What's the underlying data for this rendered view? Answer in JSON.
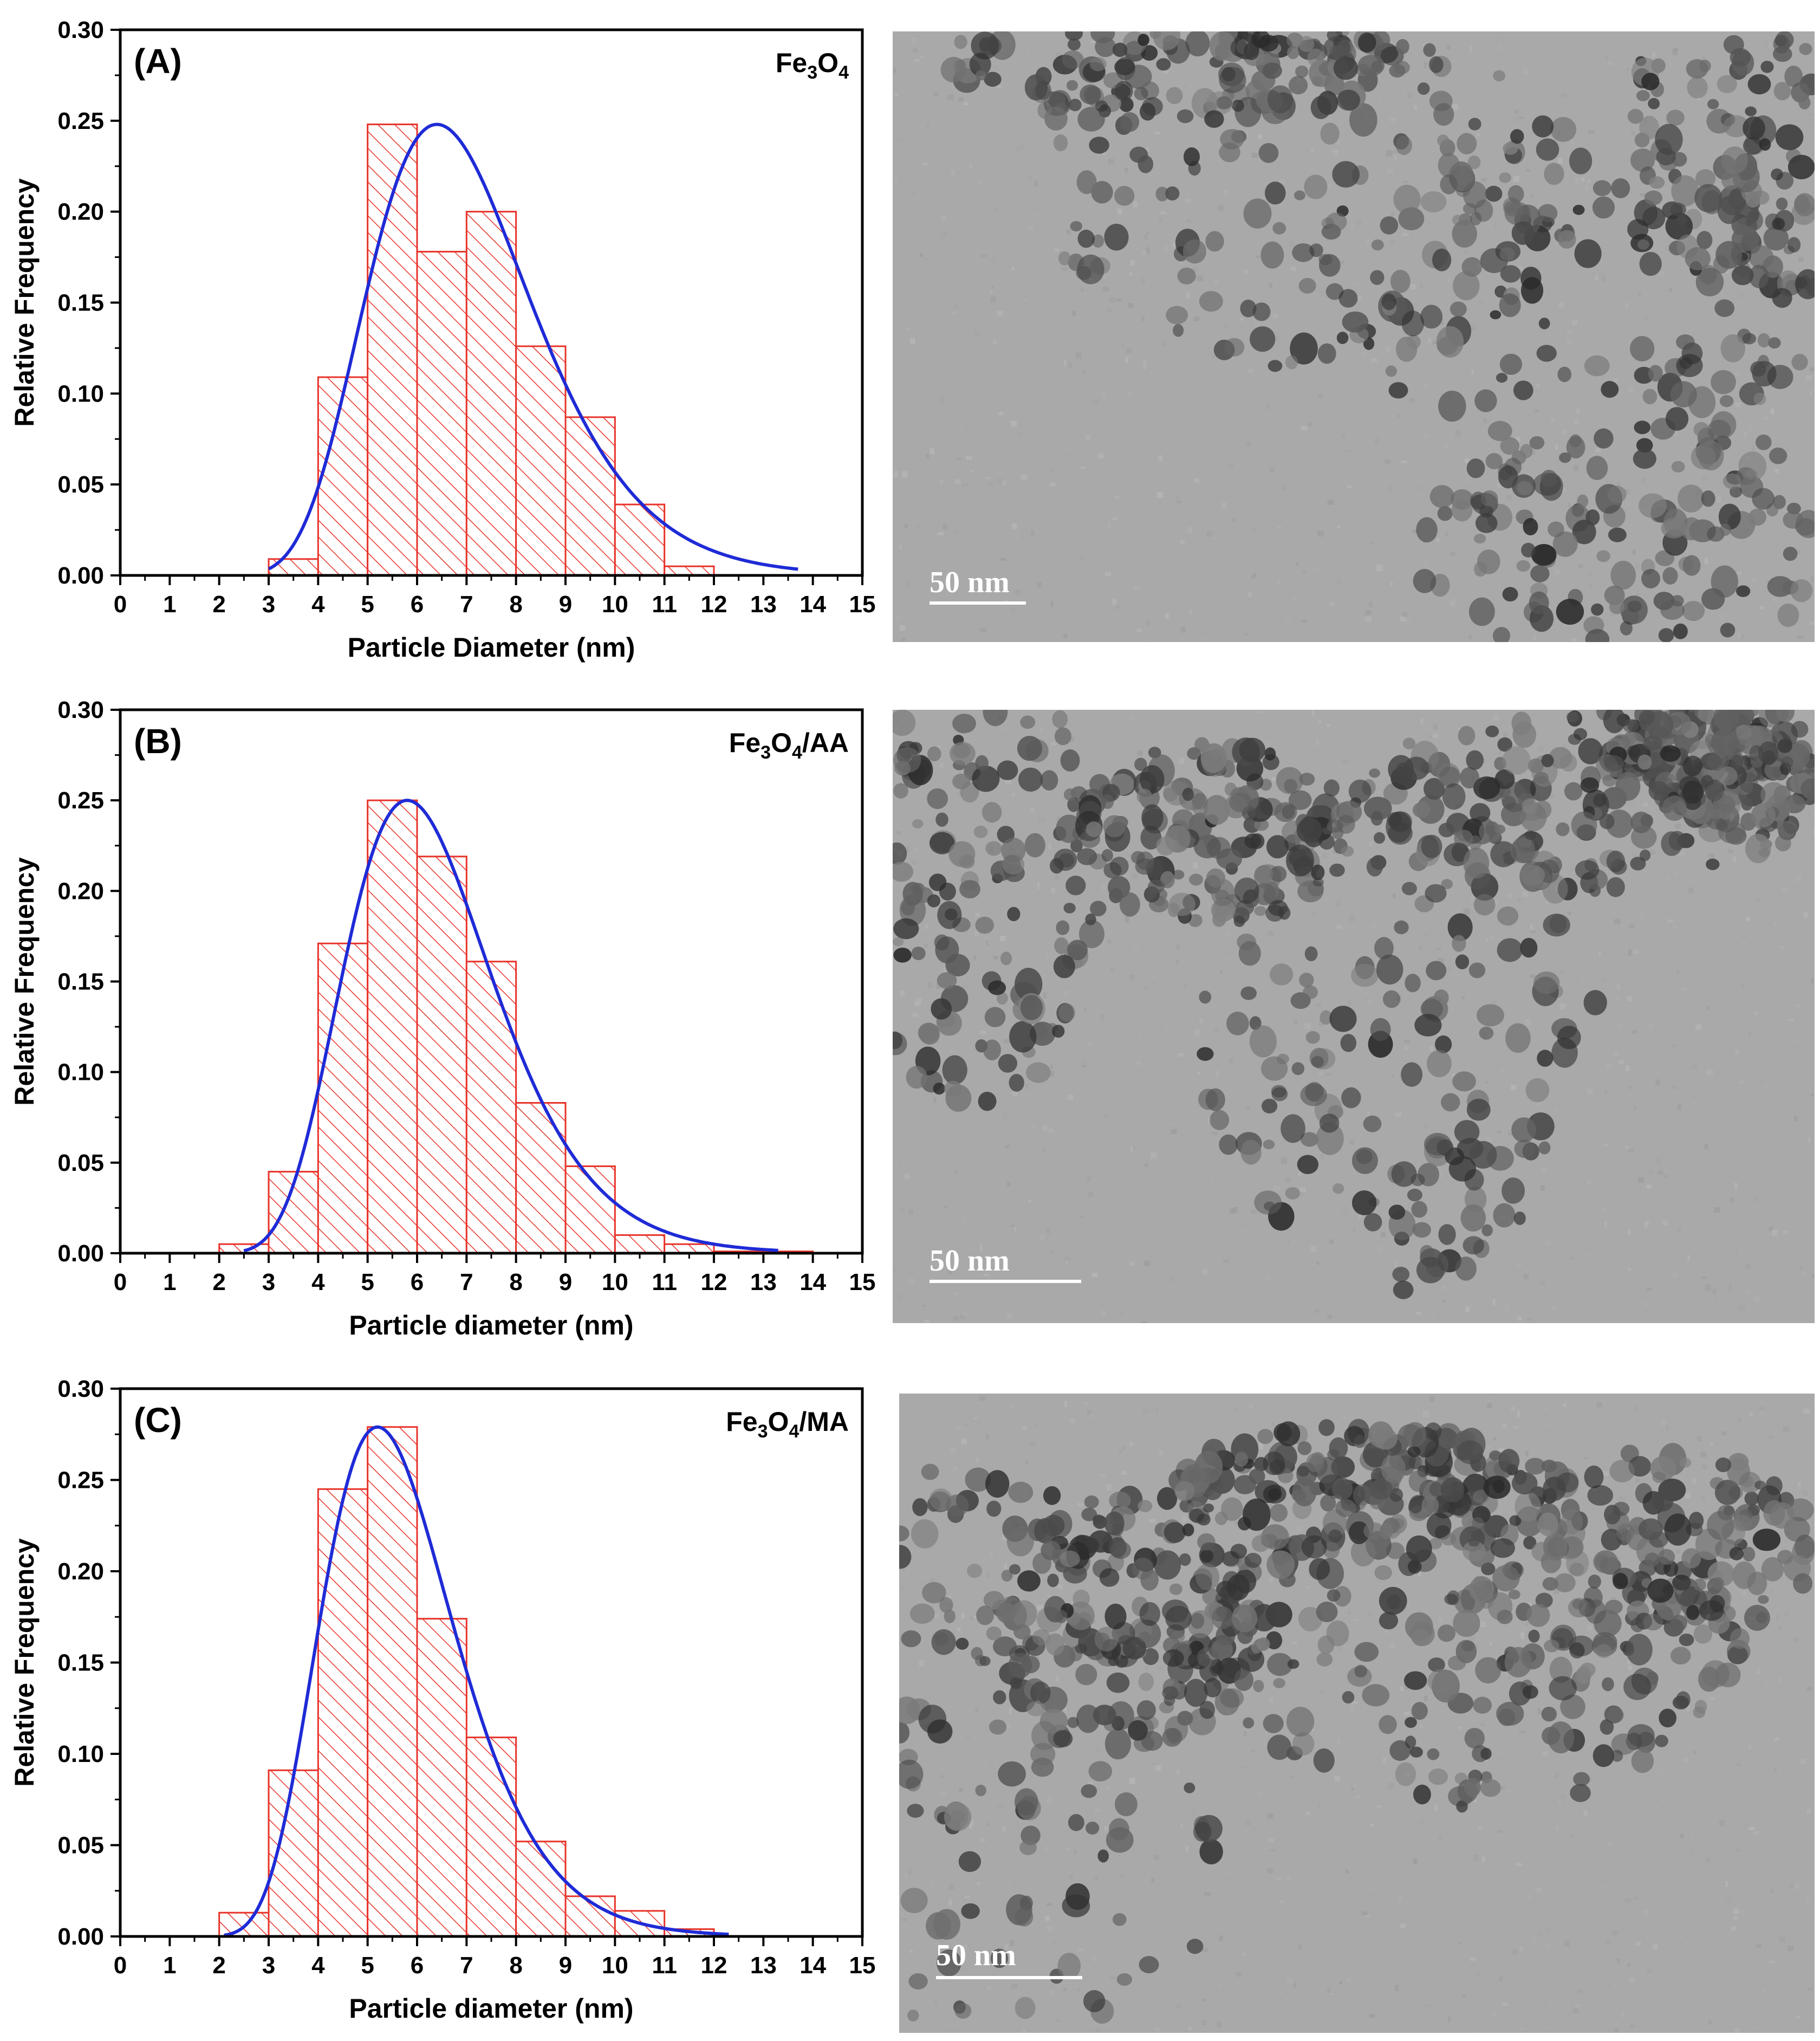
{
  "figure": {
    "colors": {
      "bar_edge": "#e8332a",
      "hatch": "#e8332a",
      "fit_line": "#1f2bd6",
      "axis": "#000000",
      "tem_background": "#a9a9a9",
      "scale_bar": "#ffffff"
    }
  },
  "chart_data": [
    {
      "type": "bar",
      "panel_label": "(A)",
      "sample_label": "Fe3O4",
      "sample_label_parts": [
        "Fe",
        "3",
        "O",
        "4",
        ""
      ],
      "xlabel": "Particle Diameter (nm)",
      "ylabel": "Relative Frequency",
      "xlim": [
        0,
        15
      ],
      "ylim": [
        0,
        0.3
      ],
      "xticks": [
        "0",
        "1",
        "2",
        "3",
        "4",
        "5",
        "6",
        "7",
        "8",
        "9",
        "10",
        "11",
        "12",
        "13",
        "14",
        "15"
      ],
      "yticks": [
        "0.00",
        "0.05",
        "0.10",
        "0.15",
        "0.20",
        "0.25",
        "0.30"
      ],
      "bins": [
        [
          3,
          4
        ],
        [
          4,
          5
        ],
        [
          5,
          6
        ],
        [
          6,
          7
        ],
        [
          7,
          8
        ],
        [
          8,
          9
        ],
        [
          9,
          10
        ],
        [
          10,
          11
        ],
        [
          11,
          12
        ]
      ],
      "values": [
        0.009,
        0.109,
        0.248,
        0.178,
        0.2,
        0.126,
        0.087,
        0.039,
        0.005
      ],
      "fit": {
        "name": "lognormal fit",
        "peak_x": 6.4,
        "peak_y": 0.248,
        "x_start": 3.0,
        "x_end": 13.7
      }
    },
    {
      "type": "bar",
      "panel_label": "(B)",
      "sample_label": "Fe3O4/AA",
      "sample_label_parts": [
        "Fe",
        "3",
        "O",
        "4",
        "/AA"
      ],
      "xlabel": "Particle diameter (nm)",
      "ylabel": "Relative Frequency",
      "xlim": [
        0,
        15
      ],
      "ylim": [
        0,
        0.3
      ],
      "xticks": [
        "0",
        "1",
        "2",
        "3",
        "4",
        "5",
        "6",
        "7",
        "8",
        "9",
        "10",
        "11",
        "12",
        "13",
        "14",
        "15"
      ],
      "yticks": [
        "0.00",
        "0.05",
        "0.10",
        "0.15",
        "0.20",
        "0.25",
        "0.30"
      ],
      "bins": [
        [
          2,
          3
        ],
        [
          3,
          4
        ],
        [
          4,
          5
        ],
        [
          5,
          6
        ],
        [
          6,
          7
        ],
        [
          7,
          8
        ],
        [
          8,
          9
        ],
        [
          9,
          10
        ],
        [
          10,
          11
        ],
        [
          11,
          12
        ],
        [
          12,
          13
        ],
        [
          13,
          14
        ]
      ],
      "values": [
        0.005,
        0.045,
        0.171,
        0.25,
        0.219,
        0.161,
        0.083,
        0.048,
        0.01,
        0.005,
        0.001,
        0.001
      ],
      "fit": {
        "name": "lognormal fit",
        "peak_x": 5.8,
        "peak_y": 0.25,
        "x_start": 2.5,
        "x_end": 13.3
      }
    },
    {
      "type": "bar",
      "panel_label": "(C)",
      "sample_label": "Fe3O4/MA",
      "sample_label_parts": [
        "Fe",
        "3",
        "O",
        "4",
        "/MA"
      ],
      "xlabel": "Particle diameter (nm)",
      "ylabel": "Relative Frequency",
      "xlim": [
        0,
        15
      ],
      "ylim": [
        0,
        0.3
      ],
      "xticks": [
        "0",
        "1",
        "2",
        "3",
        "4",
        "5",
        "6",
        "7",
        "8",
        "9",
        "10",
        "11",
        "12",
        "13",
        "14",
        "15"
      ],
      "yticks": [
        "0.00",
        "0.05",
        "0.10",
        "0.15",
        "0.20",
        "0.25",
        "0.30"
      ],
      "bins": [
        [
          2,
          3
        ],
        [
          3,
          4
        ],
        [
          4,
          5
        ],
        [
          5,
          6
        ],
        [
          6,
          7
        ],
        [
          7,
          8
        ],
        [
          8,
          9
        ],
        [
          9,
          10
        ],
        [
          10,
          11
        ],
        [
          11,
          12
        ]
      ],
      "values": [
        0.013,
        0.091,
        0.245,
        0.279,
        0.174,
        0.109,
        0.052,
        0.022,
        0.014,
        0.004
      ],
      "fit": {
        "name": "lognormal fit",
        "peak_x": 5.2,
        "peak_y": 0.279,
        "x_start": 2.1,
        "x_end": 12.3
      }
    }
  ],
  "tem_images": [
    {
      "scale_label": "50 nm",
      "density": "medium",
      "seed": 11
    },
    {
      "scale_label": "50 nm",
      "density": "high",
      "seed": 23
    },
    {
      "scale_label": "50 nm",
      "density": "high",
      "seed": 37
    }
  ]
}
